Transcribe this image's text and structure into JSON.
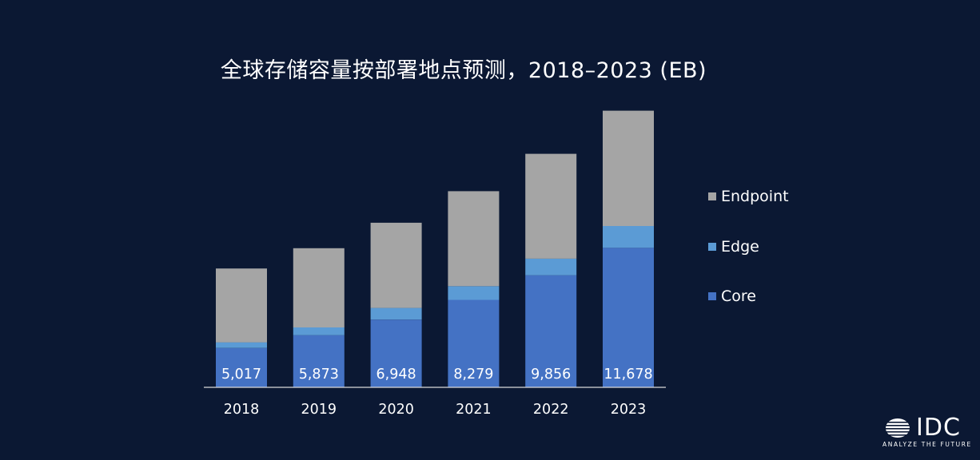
{
  "chart_data": {
    "type": "bar",
    "stacked": true,
    "title": "全球存储容量按部署地点预测，2018–2023 (EB)",
    "categories": [
      "2018",
      "2019",
      "2020",
      "2021",
      "2022",
      "2023"
    ],
    "totals": [
      5017,
      5873,
      6948,
      8279,
      9856,
      11678
    ],
    "total_labels": [
      "5,017",
      "5,873",
      "6,948",
      "8,279",
      "9,856",
      "11,678"
    ],
    "series": [
      {
        "name": "Core",
        "color": "#4472c4",
        "values": [
          1660,
          2200,
          2860,
          3690,
          4730,
          5890
        ]
      },
      {
        "name": "Edge",
        "color": "#5b9bd5",
        "values": [
          240,
          330,
          490,
          580,
          700,
          920
        ]
      },
      {
        "name": "Endpoint",
        "color": "#a5a5a5",
        "values": [
          3117,
          3343,
          3598,
          4009,
          4426,
          4868
        ]
      }
    ],
    "legend_order": [
      "Endpoint",
      "Edge",
      "Core"
    ],
    "legend_position": "right",
    "ylim": [
      0,
      12000
    ],
    "grid": false
  },
  "logo": {
    "name": "IDC",
    "tagline": "ANALYZE THE FUTURE"
  }
}
